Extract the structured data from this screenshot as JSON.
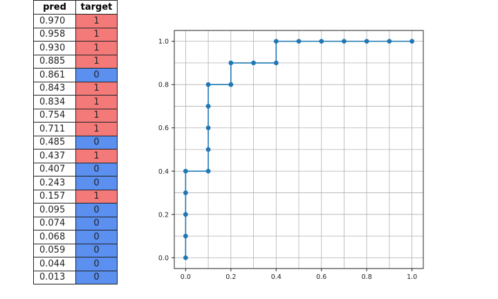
{
  "table": {
    "headers": {
      "pred": "pred",
      "target": "target"
    },
    "rows": [
      {
        "pred": "0.970",
        "target": "1"
      },
      {
        "pred": "0.958",
        "target": "1"
      },
      {
        "pred": "0.930",
        "target": "1"
      },
      {
        "pred": "0.885",
        "target": "1"
      },
      {
        "pred": "0.861",
        "target": "0"
      },
      {
        "pred": "0.843",
        "target": "1"
      },
      {
        "pred": "0.834",
        "target": "1"
      },
      {
        "pred": "0.754",
        "target": "1"
      },
      {
        "pred": "0.711",
        "target": "1"
      },
      {
        "pred": "0.485",
        "target": "0"
      },
      {
        "pred": "0.437",
        "target": "1"
      },
      {
        "pred": "0.407",
        "target": "0"
      },
      {
        "pred": "0.243",
        "target": "0"
      },
      {
        "pred": "0.157",
        "target": "1"
      },
      {
        "pred": "0.095",
        "target": "0"
      },
      {
        "pred": "0.074",
        "target": "0"
      },
      {
        "pred": "0.068",
        "target": "0"
      },
      {
        "pred": "0.059",
        "target": "0"
      },
      {
        "pred": "0.044",
        "target": "0"
      },
      {
        "pred": "0.013",
        "target": "0"
      }
    ]
  },
  "colors": {
    "positive": "#f47a7a",
    "negative": "#5b8ff0",
    "line": "#1f77b4",
    "grid": "#b0b0b0"
  },
  "chart_data": {
    "type": "line",
    "title": "",
    "xlabel": "",
    "ylabel": "",
    "xlim": [
      -0.05,
      1.05
    ],
    "ylim": [
      -0.05,
      1.05
    ],
    "xticks": [
      "0.0",
      "0.2",
      "0.4",
      "0.6",
      "0.8",
      "1.0"
    ],
    "yticks": [
      "0.0",
      "0.2",
      "0.4",
      "0.6",
      "0.8",
      "1.0"
    ],
    "grid": true,
    "series": [
      {
        "x": [
          0.0,
          0.0,
          0.0,
          0.0,
          0.0,
          0.1,
          0.1,
          0.1,
          0.1,
          0.1,
          0.2,
          0.2,
          0.3,
          0.4,
          0.4,
          0.5,
          0.6,
          0.7,
          0.8,
          0.9,
          1.0
        ],
        "y": [
          0.0,
          0.1,
          0.2,
          0.3,
          0.4,
          0.4,
          0.5,
          0.6,
          0.7,
          0.8,
          0.8,
          0.9,
          0.9,
          0.9,
          1.0,
          1.0,
          1.0,
          1.0,
          1.0,
          1.0,
          1.0
        ]
      }
    ]
  }
}
